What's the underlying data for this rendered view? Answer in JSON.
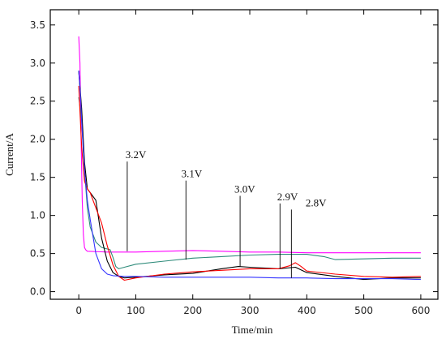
{
  "chart_data": {
    "type": "line",
    "xlabel": "Time/min",
    "ylabel": "Current/A",
    "xlim": [
      -50,
      630
    ],
    "ylim": [
      -0.1,
      3.7
    ],
    "xticks": [
      0,
      100,
      200,
      300,
      400,
      500,
      600
    ],
    "yticks": [
      0.0,
      0.5,
      1.0,
      1.5,
      2.0,
      2.5,
      3.0,
      3.5
    ],
    "grid": false,
    "series": [
      {
        "name": "3.2V",
        "color": "#ff00ff",
        "x": [
          0,
          2,
          4,
          6,
          8,
          10,
          12,
          15,
          50,
          100,
          150,
          200,
          250,
          300,
          350,
          400,
          450,
          500,
          550,
          600
        ],
        "y": [
          3.35,
          3.0,
          2.0,
          1.2,
          0.75,
          0.58,
          0.55,
          0.53,
          0.52,
          0.52,
          0.53,
          0.54,
          0.53,
          0.52,
          0.52,
          0.51,
          0.51,
          0.51,
          0.51,
          0.51
        ]
      },
      {
        "name": "3.1V",
        "color": "#2e8b7a",
        "x": [
          0,
          5,
          10,
          15,
          20,
          30,
          40,
          50,
          55,
          60,
          65,
          70,
          80,
          100,
          150,
          200,
          250,
          300,
          350,
          400,
          430,
          450,
          500,
          550,
          600
        ],
        "y": [
          2.55,
          2.25,
          1.6,
          1.1,
          0.85,
          0.65,
          0.58,
          0.56,
          0.55,
          0.45,
          0.33,
          0.3,
          0.32,
          0.36,
          0.4,
          0.44,
          0.46,
          0.48,
          0.49,
          0.49,
          0.46,
          0.42,
          0.43,
          0.44,
          0.44
        ]
      },
      {
        "name": "3.0V",
        "color": "#000000",
        "x": [
          0,
          5,
          10,
          15,
          20,
          30,
          40,
          50,
          60,
          70,
          80,
          100,
          150,
          200,
          250,
          280,
          300,
          350,
          380,
          400,
          450,
          500,
          550,
          600
        ],
        "y": [
          2.9,
          2.4,
          1.7,
          1.35,
          1.3,
          1.2,
          0.7,
          0.4,
          0.25,
          0.2,
          0.18,
          0.19,
          0.22,
          0.24,
          0.3,
          0.33,
          0.32,
          0.3,
          0.32,
          0.25,
          0.2,
          0.16,
          0.18,
          0.18
        ]
      },
      {
        "name": "2.9V",
        "color": "#ff0000",
        "x": [
          0,
          5,
          10,
          15,
          20,
          30,
          40,
          50,
          60,
          70,
          80,
          100,
          150,
          200,
          250,
          300,
          350,
          370,
          380,
          390,
          400,
          450,
          500,
          550,
          600
        ],
        "y": [
          2.7,
          1.9,
          1.45,
          1.35,
          1.3,
          1.1,
          0.9,
          0.6,
          0.35,
          0.2,
          0.15,
          0.18,
          0.23,
          0.26,
          0.28,
          0.3,
          0.3,
          0.34,
          0.38,
          0.33,
          0.27,
          0.23,
          0.2,
          0.19,
          0.2
        ]
      },
      {
        "name": "2.8V",
        "color": "#3333ff",
        "x": [
          0,
          3,
          6,
          10,
          15,
          20,
          30,
          40,
          50,
          60,
          80,
          100,
          150,
          200,
          250,
          300,
          350,
          400,
          450,
          500,
          550,
          600
        ],
        "y": [
          2.9,
          2.55,
          2.1,
          1.6,
          1.2,
          0.95,
          0.5,
          0.3,
          0.23,
          0.21,
          0.2,
          0.2,
          0.19,
          0.19,
          0.19,
          0.19,
          0.18,
          0.18,
          0.17,
          0.17,
          0.17,
          0.16
        ]
      }
    ],
    "annotations": [
      {
        "text": "3.2V",
        "x": 82,
        "y": 1.75,
        "target_x": 85,
        "target_y": 0.53
      },
      {
        "text": "3.1V",
        "x": 180,
        "y": 1.5,
        "target_x": 188,
        "target_y": 0.42
      },
      {
        "text": "3.0V",
        "x": 273,
        "y": 1.3,
        "target_x": 283,
        "target_y": 0.33
      },
      {
        "text": "2.9V",
        "x": 348,
        "y": 1.2,
        "target_x": 353,
        "target_y": 0.3
      },
      {
        "text": "2.8V",
        "x": 398,
        "y": 1.12,
        "target_x": 373,
        "target_y": 0.18
      }
    ]
  }
}
